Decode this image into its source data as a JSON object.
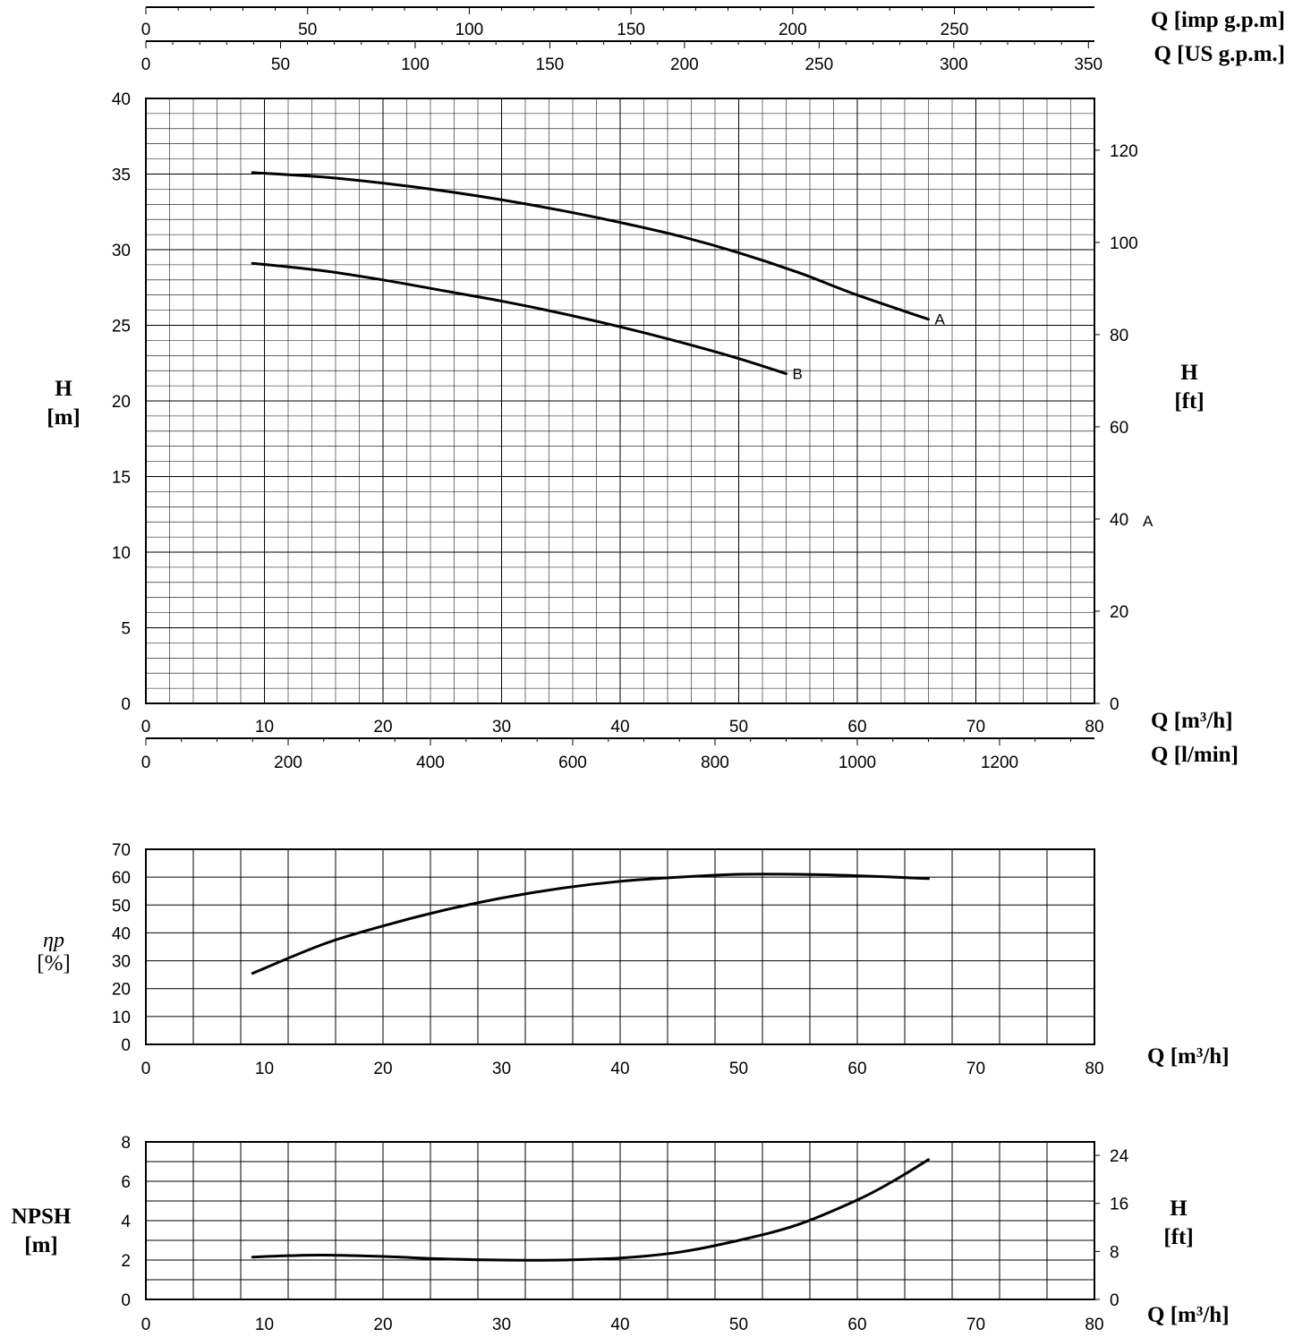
{
  "chart_data": [
    {
      "type": "line",
      "id": "head",
      "title": "",
      "xlabel": "Q [m³/h]",
      "ylabel_left": [
        "H",
        "[m]"
      ],
      "ylabel_right": [
        "H",
        "[ft]"
      ],
      "xlim": [
        0,
        80
      ],
      "ylim": [
        0,
        40
      ],
      "y2lim_ft": [
        0,
        131.23
      ],
      "grid": true,
      "x_ticks": [
        0,
        10,
        20,
        30,
        40,
        50,
        60,
        70,
        80
      ],
      "y_ticks": [
        0,
        5,
        10,
        15,
        20,
        25,
        30,
        35,
        40
      ],
      "y2_ticks_ft": [
        0,
        20,
        40,
        60,
        80,
        100,
        120
      ],
      "extra_axes": {
        "top_imp_gpm": {
          "label": "Q [imp g.p.m]",
          "ticks": [
            0,
            50,
            100,
            150,
            200,
            250
          ]
        },
        "top_us_gpm": {
          "label": "Q [US g.p.m.]",
          "ticks": [
            0,
            50,
            100,
            150,
            200,
            250,
            300,
            350
          ]
        },
        "bottom_l_min": {
          "label": "Q [l/min]",
          "ticks": [
            0,
            200,
            400,
            600,
            800,
            1000,
            1200
          ]
        }
      },
      "annotations": [
        {
          "text": "A",
          "near": "right axis, H = 40 ft"
        }
      ],
      "series": [
        {
          "name": "A",
          "x": [
            9,
            15,
            20,
            25,
            30,
            35,
            40,
            45,
            50,
            55,
            60,
            66
          ],
          "y": [
            35.1,
            34.8,
            34.4,
            33.9,
            33.3,
            32.6,
            31.8,
            30.9,
            29.8,
            28.5,
            27.0,
            25.4
          ]
        },
        {
          "name": "B",
          "x": [
            9,
            15,
            20,
            25,
            30,
            35,
            40,
            45,
            50,
            54
          ],
          "y": [
            29.1,
            28.6,
            28.0,
            27.3,
            26.6,
            25.8,
            24.9,
            23.9,
            22.8,
            21.8
          ]
        }
      ]
    },
    {
      "type": "line",
      "id": "efficiency",
      "title": "",
      "xlabel": "Q [m³/h]",
      "ylabel": [
        "ηp",
        "[%]"
      ],
      "xlim": [
        0,
        80
      ],
      "ylim": [
        0,
        70
      ],
      "grid": true,
      "x_ticks": [
        0,
        10,
        20,
        30,
        40,
        50,
        60,
        70,
        80
      ],
      "y_ticks": [
        0,
        10,
        20,
        30,
        40,
        50,
        60,
        70
      ],
      "series": [
        {
          "x": [
            9,
            15,
            20,
            25,
            30,
            35,
            40,
            45,
            50,
            55,
            60,
            66
          ],
          "y": [
            25.5,
            36,
            42.5,
            48,
            52.5,
            56,
            58.5,
            60,
            61,
            61,
            60.5,
            59.5
          ]
        }
      ]
    },
    {
      "type": "line",
      "id": "npsh",
      "title": "",
      "xlabel": "Q [m³/h]",
      "ylabel_left": [
        "NPSH",
        "[m]"
      ],
      "ylabel_right": [
        "H",
        "[ft]"
      ],
      "xlim": [
        0,
        80
      ],
      "ylim": [
        0,
        8
      ],
      "y2lim_ft": [
        0,
        26.25
      ],
      "grid": true,
      "x_ticks": [
        0,
        10,
        20,
        30,
        40,
        50,
        60,
        70,
        80
      ],
      "y_ticks": [
        0,
        2,
        4,
        6,
        8
      ],
      "y2_ticks_ft": [
        0,
        8,
        16,
        24
      ],
      "series": [
        {
          "x": [
            9,
            12,
            15,
            20,
            25,
            30,
            35,
            40,
            45,
            50,
            55,
            60,
            63,
            66
          ],
          "y": [
            2.15,
            2.22,
            2.25,
            2.18,
            2.06,
            2.0,
            2.0,
            2.1,
            2.4,
            3.0,
            3.8,
            5.05,
            6.0,
            7.1
          ]
        }
      ]
    }
  ]
}
